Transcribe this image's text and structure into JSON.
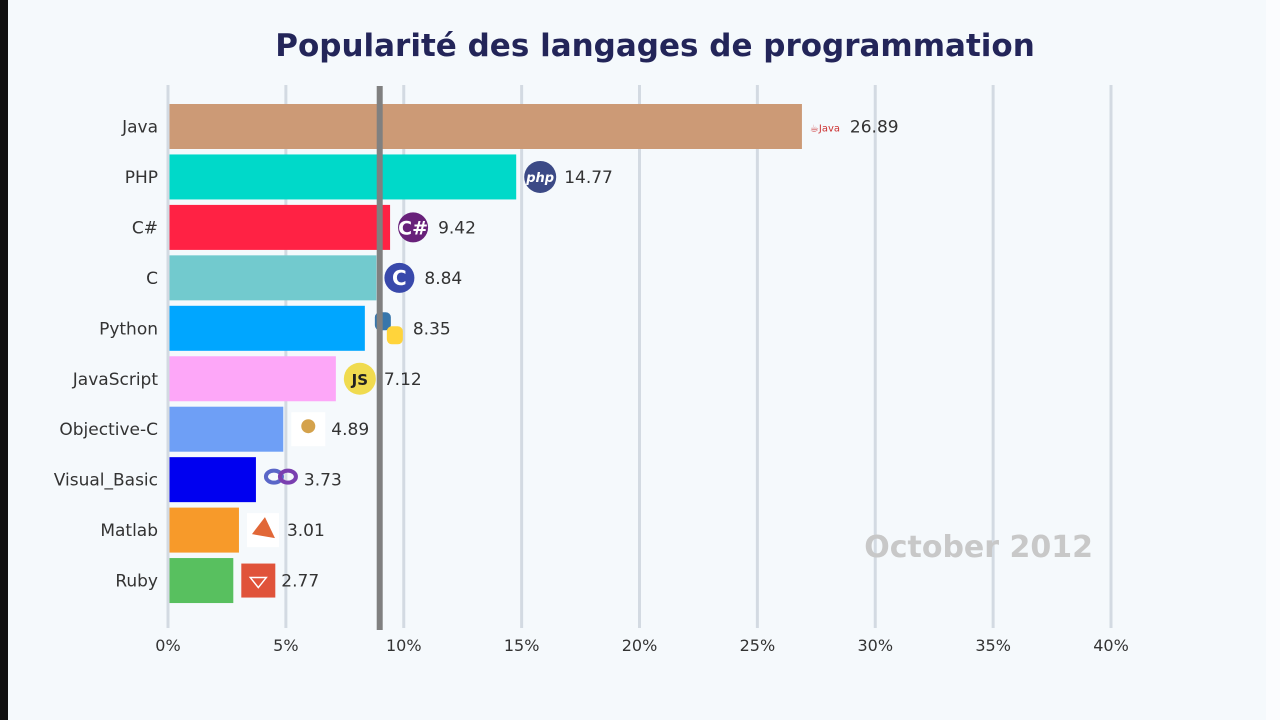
{
  "chart_data": {
    "type": "bar",
    "orientation": "horizontal",
    "title": "Popularité des langages de programmation",
    "period_label": "October 2012",
    "categories": [
      "Java",
      "PHP",
      "C#",
      "C",
      "Python",
      "JavaScript",
      "Objective-C",
      "Visual_Basic",
      "Matlab",
      "Ruby"
    ],
    "values": [
      26.89,
      14.77,
      9.42,
      8.84,
      8.35,
      7.12,
      4.89,
      3.73,
      3.01,
      2.77
    ],
    "value_labels": [
      "26.89",
      "14.77",
      "9.42",
      "8.84",
      "8.35",
      "7.12",
      "4.89",
      "3.73",
      "3.01",
      "2.77"
    ],
    "colors": [
      "#cc9a76",
      "#00d9c9",
      "#ff2244",
      "#72cace",
      "#00a6ff",
      "#fda7f8",
      "#6e9ff6",
      "#0000f0",
      "#f79a2a",
      "#58c05f"
    ],
    "icons": [
      "java-icon",
      "php-icon",
      "csharp-icon",
      "c-icon",
      "python-icon",
      "javascript-icon",
      "objective-c-icon",
      "visual-basic-icon",
      "matlab-icon",
      "ruby-icon"
    ],
    "average_line": 8.98,
    "xlim": [
      0,
      40
    ],
    "xticks": [
      0,
      5,
      10,
      15,
      20,
      25,
      30,
      35,
      40
    ],
    "xtick_labels": [
      "0%",
      "5%",
      "10%",
      "15%",
      "20%",
      "25%",
      "30%",
      "35%",
      "40%"
    ],
    "grid": true
  }
}
